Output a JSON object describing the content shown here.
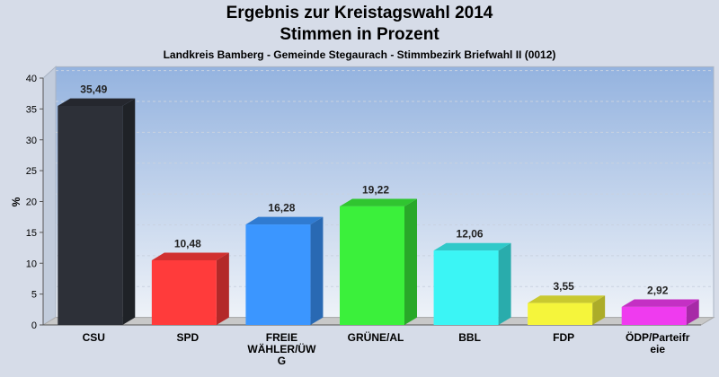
{
  "header": {
    "title_line1": "Ergebnis zur Kreistagswahl 2014",
    "title_line2": "Stimmen in Prozent",
    "subtitle": "Landkreis Bamberg - Gemeinde Stegaurach - Stimmbezirk Briefwahl II (0012)"
  },
  "chart_data": {
    "type": "bar",
    "title": "Ergebnis zur Kreistagswahl 2014 / Stimmen in Prozent",
    "subtitle": "Landkreis Bamberg - Gemeinde Stegaurach - Stimmbezirk Briefwahl II (0012)",
    "xlabel": "",
    "ylabel": "%",
    "ylim": [
      0,
      40
    ],
    "yticks": [
      0,
      5,
      10,
      15,
      20,
      25,
      30,
      35,
      40
    ],
    "grid": true,
    "categories": [
      "CSU",
      "SPD",
      "FREIE WÄHLER/ÜWG",
      "GRÜNE/AL",
      "BBL",
      "FDP",
      "ÖDP/Parteifreie"
    ],
    "category_label_lines": [
      [
        "CSU"
      ],
      [
        "SPD"
      ],
      [
        "FREIE",
        "WÄHLER/ÜW",
        "G"
      ],
      [
        "GRÜNE/AL"
      ],
      [
        "BBL"
      ],
      [
        "FDP"
      ],
      [
        "ÖDP/Parteifr",
        "eie"
      ]
    ],
    "values": [
      35.49,
      10.48,
      16.28,
      19.22,
      12.06,
      3.55,
      2.92
    ],
    "value_labels": [
      "35,49",
      "10,48",
      "16,28",
      "19,22",
      "12,06",
      "3,55",
      "2,92"
    ],
    "colors": [
      "#2d3038",
      "#ff3b3b",
      "#3b96ff",
      "#3bf03b",
      "#3bf5f5",
      "#f5f53b",
      "#ef3bef"
    ]
  }
}
